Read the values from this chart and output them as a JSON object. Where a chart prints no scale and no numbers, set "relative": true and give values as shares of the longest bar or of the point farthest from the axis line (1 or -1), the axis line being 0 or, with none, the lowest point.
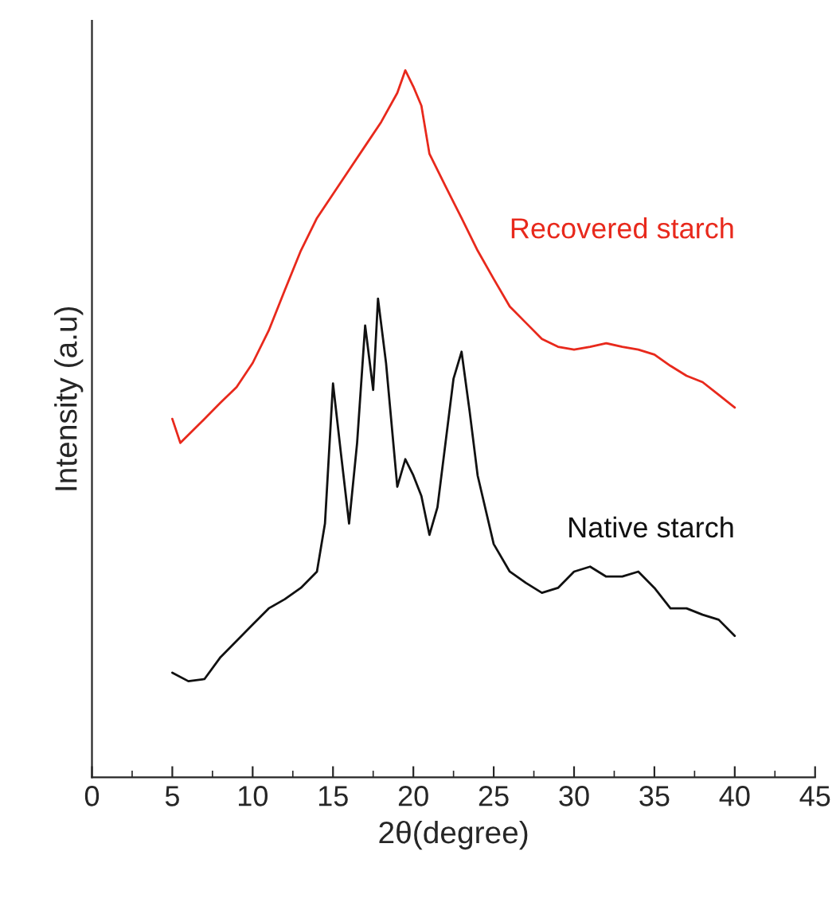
{
  "chart_data": {
    "type": "line",
    "relative": true,
    "xlabel": "2θ(degree)",
    "ylabel": "Intensity (a.u)",
    "xlim": [
      0,
      45
    ],
    "xticks": [
      0,
      5,
      10,
      15,
      20,
      25,
      30,
      35,
      40,
      45
    ],
    "grid": false,
    "legend": false,
    "marker": "none",
    "line_style": "solid",
    "series": [
      {
        "name": "Recovered starch",
        "color": "#e8291c",
        "x": [
          5,
          5.5,
          7,
          8,
          9,
          10,
          11,
          12,
          13,
          14,
          15,
          16,
          17,
          18,
          19,
          19.5,
          20,
          20.5,
          21,
          22,
          23,
          24,
          25,
          26,
          27,
          28,
          29,
          30,
          31,
          32,
          33,
          34,
          35,
          36,
          37,
          38,
          39,
          40
        ],
        "values": [
          0.507,
          0.473,
          0.507,
          0.53,
          0.552,
          0.586,
          0.632,
          0.689,
          0.745,
          0.791,
          0.825,
          0.859,
          0.893,
          0.927,
          0.968,
          1.0,
          0.977,
          0.95,
          0.882,
          0.836,
          0.791,
          0.745,
          0.705,
          0.666,
          0.643,
          0.62,
          0.609,
          0.605,
          0.609,
          0.614,
          0.609,
          0.605,
          0.598,
          0.582,
          0.568,
          0.559,
          0.541,
          0.523
        ]
      },
      {
        "name": "Native starch",
        "color": "#111111",
        "x": [
          5,
          6,
          7,
          8,
          9,
          10,
          11,
          12,
          13,
          14,
          14.5,
          15,
          15.5,
          16,
          16.5,
          17,
          17.5,
          17.8,
          18.3,
          19,
          19.5,
          20,
          20.5,
          21,
          21.5,
          22,
          22.5,
          23,
          23.5,
          24,
          25,
          26,
          27,
          28,
          29,
          30,
          31,
          32,
          33,
          34,
          35,
          36,
          37,
          38,
          39,
          40
        ],
        "values": [
          0.148,
          0.136,
          0.139,
          0.17,
          0.193,
          0.216,
          0.239,
          0.252,
          0.268,
          0.291,
          0.359,
          0.557,
          0.457,
          0.359,
          0.473,
          0.639,
          0.548,
          0.677,
          0.586,
          0.411,
          0.45,
          0.427,
          0.398,
          0.343,
          0.382,
          0.473,
          0.564,
          0.602,
          0.518,
          0.427,
          0.33,
          0.291,
          0.275,
          0.261,
          0.268,
          0.291,
          0.298,
          0.284,
          0.284,
          0.291,
          0.268,
          0.239,
          0.239,
          0.23,
          0.223,
          0.2
        ]
      }
    ]
  }
}
